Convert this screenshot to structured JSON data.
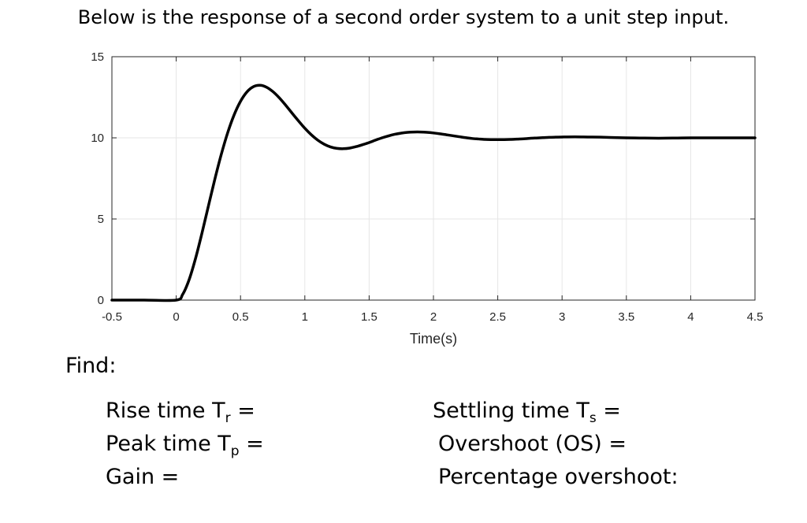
{
  "heading": "Below is the response of a second order system to a unit step input.",
  "chart_data": {
    "type": "line",
    "title": "",
    "xlabel": "Time(s)",
    "ylabel": "",
    "xlim": [
      -0.5,
      4.5
    ],
    "ylim": [
      0,
      15
    ],
    "grid": true,
    "xticks": [
      "-0.5",
      "0",
      "0.5",
      "1",
      "1.5",
      "2",
      "2.5",
      "3",
      "3.5",
      "4",
      "4.5"
    ],
    "yticks": [
      "0",
      "5",
      "10",
      "15"
    ],
    "series": [
      {
        "name": "",
        "color": "#000000",
        "x": [
          -0.5,
          -0.25,
          0.0,
          0.05,
          0.1,
          0.15,
          0.2,
          0.25,
          0.3,
          0.35,
          0.4,
          0.45,
          0.5,
          0.55,
          0.6,
          0.65,
          0.7,
          0.75,
          0.8,
          0.85,
          0.9,
          0.95,
          1.0,
          1.05,
          1.1,
          1.15,
          1.2,
          1.25,
          1.3,
          1.35,
          1.4,
          1.45,
          1.5,
          1.55,
          1.6,
          1.65,
          1.7,
          1.75,
          1.8,
          1.85,
          1.9,
          1.95,
          2.0,
          2.05,
          2.1,
          2.15,
          2.2,
          2.25,
          2.3,
          2.35,
          2.4,
          2.45,
          2.5,
          2.55,
          2.6,
          2.65,
          2.7,
          2.75,
          2.8,
          2.85,
          2.9,
          2.95,
          3.0,
          3.1,
          3.2,
          3.3,
          3.4,
          3.5,
          3.6,
          3.7,
          3.8,
          3.9,
          4.0,
          4.1,
          4.2,
          4.3,
          4.4,
          4.5
        ],
        "y": [
          0,
          0,
          0,
          0.35,
          1.25,
          2.56,
          4.12,
          5.79,
          7.44,
          8.97,
          10.31,
          11.41,
          12.25,
          12.83,
          13.15,
          13.24,
          13.13,
          12.86,
          12.48,
          12.02,
          11.53,
          11.05,
          10.59,
          10.19,
          9.86,
          9.61,
          9.44,
          9.35,
          9.33,
          9.37,
          9.46,
          9.58,
          9.71,
          9.86,
          10.0,
          10.12,
          10.22,
          10.29,
          10.34,
          10.36,
          10.36,
          10.34,
          10.3,
          10.25,
          10.19,
          10.13,
          10.07,
          10.01,
          9.96,
          9.93,
          9.9,
          9.89,
          9.89,
          9.89,
          9.9,
          9.92,
          9.94,
          9.97,
          9.99,
          10.01,
          10.03,
          10.04,
          10.05,
          10.06,
          10.05,
          10.04,
          10.02,
          10.0,
          9.99,
          9.98,
          9.98,
          9.99,
          10.0,
          10.0,
          10.0,
          10.0,
          10.0,
          10.0
        ]
      }
    ]
  },
  "find_label": "Find:",
  "questions": {
    "rise_time": {
      "label": "Rise time T",
      "sub": "r",
      "suffix": " ="
    },
    "peak_time": {
      "label": "Peak time T",
      "sub": "p",
      "suffix": " ="
    },
    "gain": {
      "label": "Gain ="
    },
    "settling_time": {
      "label": "Settling time T",
      "sub": "s",
      "suffix": " ="
    },
    "overshoot": {
      "label": "Overshoot (OS) ="
    },
    "percentage_overshoot": {
      "label": "Percentage overshoot:"
    }
  }
}
